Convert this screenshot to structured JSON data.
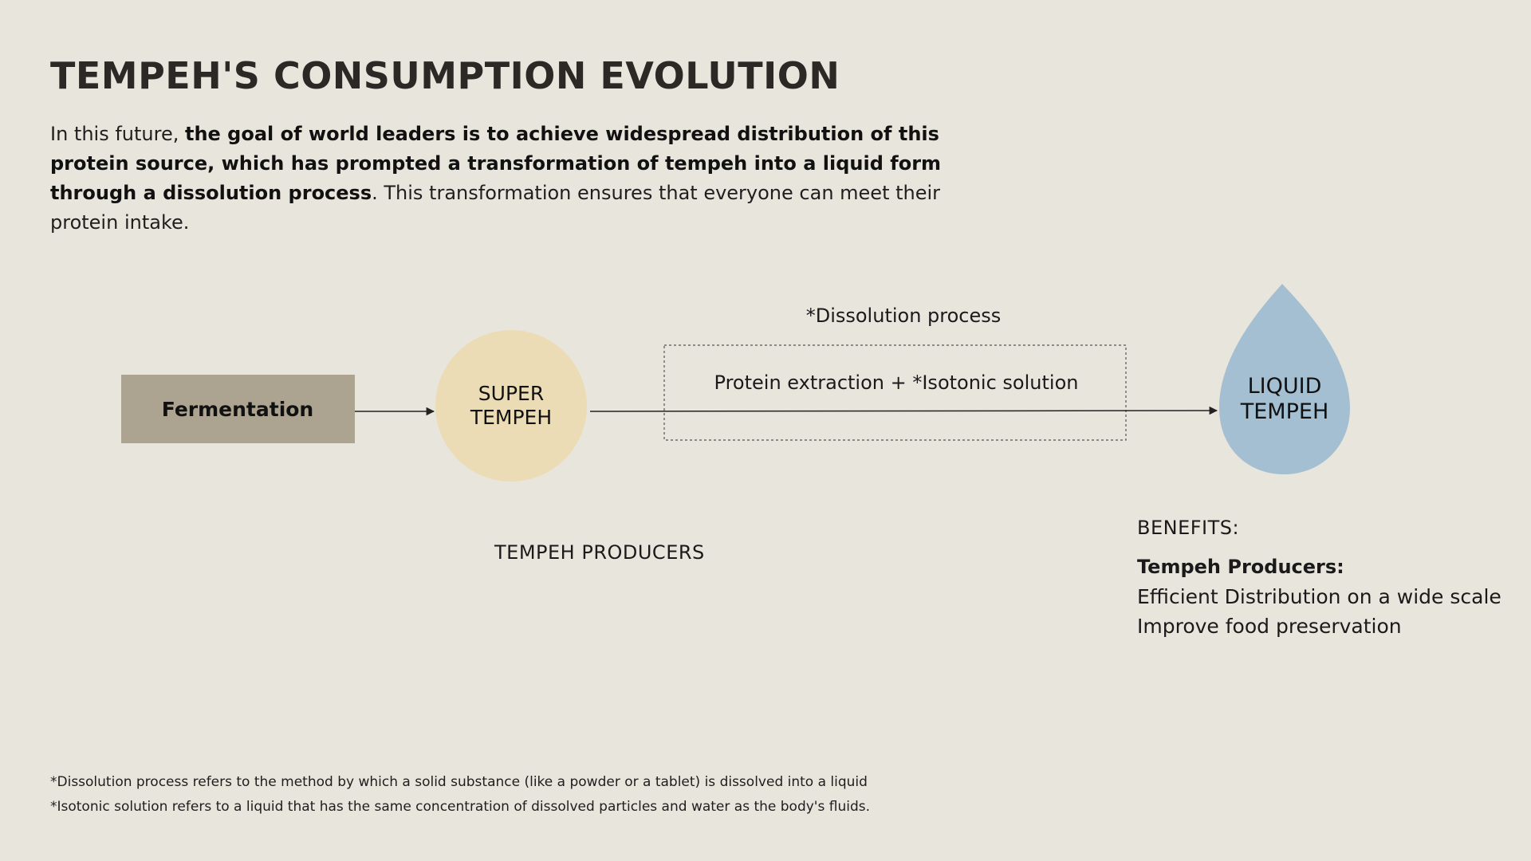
{
  "header": {
    "title": "TEMPEH'S CONSUMPTION EVOLUTION"
  },
  "intro": {
    "lead": "In this future, ",
    "bold": "the goal of world leaders is to achieve widespread distribution of this protein source, which has prompted a transformation of tempeh into a liquid form through a dissolution process",
    "tail": ". This transformation ensures that everyone can meet their protein intake."
  },
  "diagram": {
    "fermentation_label": "Fermentation",
    "super_tempeh_line1": "SUPER",
    "super_tempeh_line2": "TEMPEH",
    "process_heading": "*Dissolution process",
    "process_box_label": "Protein extraction + *Isotonic solution",
    "liquid_tempeh_line1": "LIQUID",
    "liquid_tempeh_line2": "TEMPEH",
    "producers_label": "TEMPEH PRODUCERS",
    "colors": {
      "fermentation_fill": "#aca391",
      "super_tempeh_fill": "#ecdcb6",
      "liquid_tempeh_fill": "#a4bfd1",
      "arrow": "#222222"
    }
  },
  "benefits": {
    "title": "BENEFITS:",
    "subtitle": "Tempeh Producers:",
    "items": [
      "Efficient Distribution on a wide scale",
      "Improve food preservation"
    ]
  },
  "footnotes": [
    "*Dissolution process refers to the method by which a solid substance (like a powder or a tablet) is dissolved into a liquid",
    "*Isotonic solution refers to a liquid that has the same concentration of dissolved particles and water as the body's fluids."
  ]
}
